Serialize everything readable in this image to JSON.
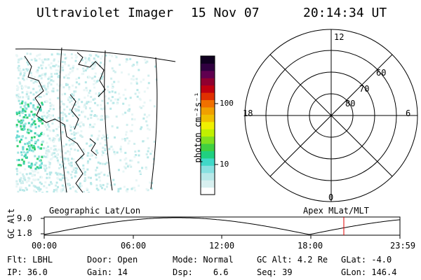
{
  "header": {
    "title": "Ultraviolet Imager",
    "date": "15 Nov 07",
    "time": "20:14:34 UT"
  },
  "colorbar": {
    "unit_label": "photon cm⁻²s⁻¹",
    "ticks": [
      "100",
      "10"
    ],
    "colors": [
      "#ffffff",
      "#d8f0f0",
      "#b8e8e8",
      "#88e0e0",
      "#40d8c8",
      "#20d080",
      "#40d040",
      "#80e020",
      "#c0f000",
      "#f0f000",
      "#f0c000",
      "#f0a000",
      "#f07000",
      "#e03000",
      "#c00010",
      "#900030",
      "#600050",
      "#300040",
      "#100020"
    ]
  },
  "polar_plot": {
    "label_top": "12",
    "label_left": "18",
    "label_right": "6",
    "label_bottom": "0",
    "lat_labels": [
      "60",
      "70",
      "80"
    ]
  },
  "map_panel": {
    "caption": "Geographic Lat/Lon"
  },
  "polar_caption": "Apex MLat/MLT",
  "altitude_plot": {
    "ylabel": "GC Alt",
    "y_ticks": [
      "9.0",
      "1.8"
    ],
    "x_ticks": [
      "00:00",
      "06:00",
      "12:00",
      "18:00",
      "23:59"
    ],
    "marker_color": "#e00000"
  },
  "status": {
    "row1": [
      {
        "label": "Flt:",
        "value": "LBHL"
      },
      {
        "label": "Door:",
        "value": "Open"
      },
      {
        "label": "Mode:",
        "value": "Normal"
      },
      {
        "label": "GC Alt:",
        "value": "4.2 Re"
      },
      {
        "label": "GLat:",
        "value": "-4.0"
      }
    ],
    "row2": [
      {
        "label": "IP:",
        "value": "36.0"
      },
      {
        "label": "Gain:",
        "value": "14"
      },
      {
        "label": "Dsp:",
        "value": "6.6"
      },
      {
        "label": "Seq:",
        "value": "39"
      },
      {
        "label": "GLon:",
        "value": "146.4"
      }
    ]
  }
}
